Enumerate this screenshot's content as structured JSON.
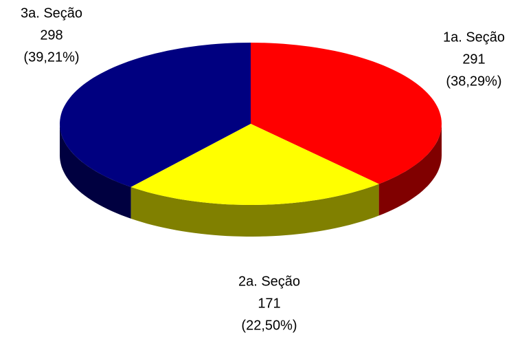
{
  "chart_data": {
    "type": "pie3d",
    "categories": [
      "1a. Seção",
      "2a. Seção",
      "3a. Seção"
    ],
    "values": [
      291,
      171,
      298
    ],
    "percentages": [
      38.29,
      22.5,
      39.21
    ],
    "percentage_labels": [
      "(38,29%)",
      "(22,50%)",
      "(39,21%)"
    ],
    "colors": [
      "#ff0000",
      "#ffff00",
      "#000080"
    ],
    "side_colors": [
      "#800000",
      "#808000",
      "#000040"
    ]
  }
}
